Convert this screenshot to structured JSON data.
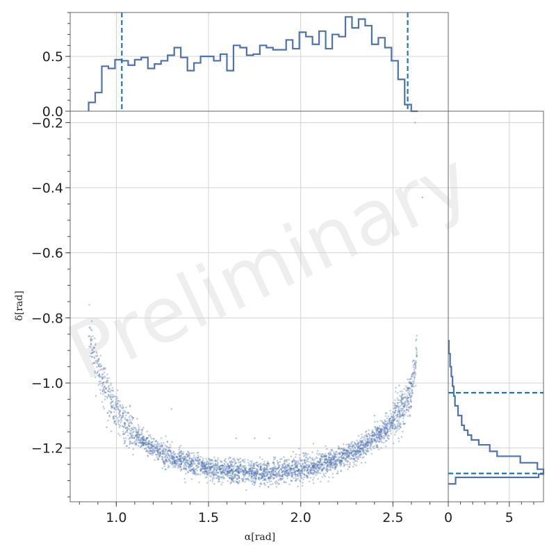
{
  "chart_data": {
    "type": "scatter",
    "watermark": "Preliminary",
    "xlabel": "α[rad]",
    "ylabel": "δ[rad]",
    "colors": {
      "points": "#4c72b0",
      "hist": "#4c72b0",
      "quantile": "#1f77b4"
    },
    "main": {
      "xlim": [
        0.75,
        2.8
      ],
      "ylim": [
        -1.365,
        -0.165
      ],
      "xticks": [
        1.0,
        1.5,
        2.0,
        2.5
      ],
      "xtick_labels": [
        "1.0",
        "1.5",
        "2.0",
        "2.5"
      ],
      "yticks": [
        -1.2,
        -1.0,
        -0.8,
        -0.6,
        -0.4,
        -0.2
      ],
      "ytick_labels": [
        "−1.2",
        "−1.0",
        "−0.8",
        "−0.6",
        "−0.4",
        "−0.2"
      ],
      "curve": {
        "x": [
          0.85,
          0.9,
          0.95,
          1.0,
          1.05,
          1.1,
          1.2,
          1.3,
          1.4,
          1.5,
          1.6,
          1.7,
          1.8,
          1.9,
          2.0,
          2.1,
          2.2,
          2.3,
          2.4,
          2.5,
          2.55,
          2.6,
          2.63
        ],
        "y": [
          -0.84,
          -0.95,
          -1.03,
          -1.09,
          -1.13,
          -1.16,
          -1.2,
          -1.23,
          -1.25,
          -1.265,
          -1.27,
          -1.275,
          -1.275,
          -1.272,
          -1.265,
          -1.25,
          -1.235,
          -1.21,
          -1.17,
          -1.12,
          -1.08,
          -1.02,
          -0.92
        ]
      },
      "point_count": 3500,
      "point_spread": 0.018,
      "outliers": [
        [
          2.62,
          -0.2
        ],
        [
          2.66,
          -0.43
        ],
        [
          1.65,
          -1.17
        ],
        [
          1.75,
          -1.17
        ],
        [
          1.83,
          -1.17
        ],
        [
          1.3,
          -1.08
        ],
        [
          2.4,
          -1.1
        ]
      ]
    },
    "top_hist": {
      "ylim": [
        0,
        0.9
      ],
      "yticks": [
        0.0,
        0.5
      ],
      "ytick_labels": [
        "0.0",
        "0.5"
      ],
      "bin_start": 0.85,
      "bin_width": 0.0357,
      "values": [
        0.08,
        0.17,
        0.41,
        0.39,
        0.47,
        0.46,
        0.42,
        0.47,
        0.49,
        0.39,
        0.43,
        0.46,
        0.51,
        0.58,
        0.49,
        0.37,
        0.44,
        0.5,
        0.5,
        0.46,
        0.52,
        0.37,
        0.6,
        0.58,
        0.51,
        0.52,
        0.6,
        0.58,
        0.56,
        0.56,
        0.65,
        0.57,
        0.72,
        0.68,
        0.61,
        0.73,
        0.57,
        0.7,
        0.68,
        0.86,
        0.76,
        0.84,
        0.78,
        0.61,
        0.67,
        0.58,
        0.46,
        0.29,
        0.06,
        0.0
      ],
      "quantiles": [
        1.03,
        2.58
      ]
    },
    "right_hist": {
      "xlim": [
        0,
        7.8
      ],
      "xticks": [
        0,
        5
      ],
      "xtick_labels": [
        "0",
        "5"
      ],
      "bins": [
        [
          -1.31,
          -1.29,
          0.6
        ],
        [
          -1.29,
          -1.28,
          7.4
        ],
        [
          -1.28,
          -1.265,
          7.8
        ],
        [
          -1.265,
          -1.245,
          7.3
        ],
        [
          -1.245,
          -1.225,
          5.9
        ],
        [
          -1.225,
          -1.21,
          4.0
        ],
        [
          -1.21,
          -1.19,
          3.4
        ],
        [
          -1.19,
          -1.175,
          2.5
        ],
        [
          -1.175,
          -1.16,
          1.9
        ],
        [
          -1.16,
          -1.145,
          1.6
        ],
        [
          -1.145,
          -1.13,
          1.3
        ],
        [
          -1.13,
          -1.1,
          1.1
        ],
        [
          -1.1,
          -1.07,
          0.8
        ],
        [
          -1.07,
          -1.04,
          0.55
        ],
        [
          -1.04,
          -1.01,
          0.45
        ],
        [
          -1.01,
          -0.98,
          0.35
        ],
        [
          -0.98,
          -0.95,
          0.25
        ],
        [
          -0.95,
          -0.91,
          0.15
        ],
        [
          -0.91,
          -0.87,
          0.05
        ]
      ],
      "quantiles": [
        -1.278,
        -1.03
      ]
    }
  }
}
